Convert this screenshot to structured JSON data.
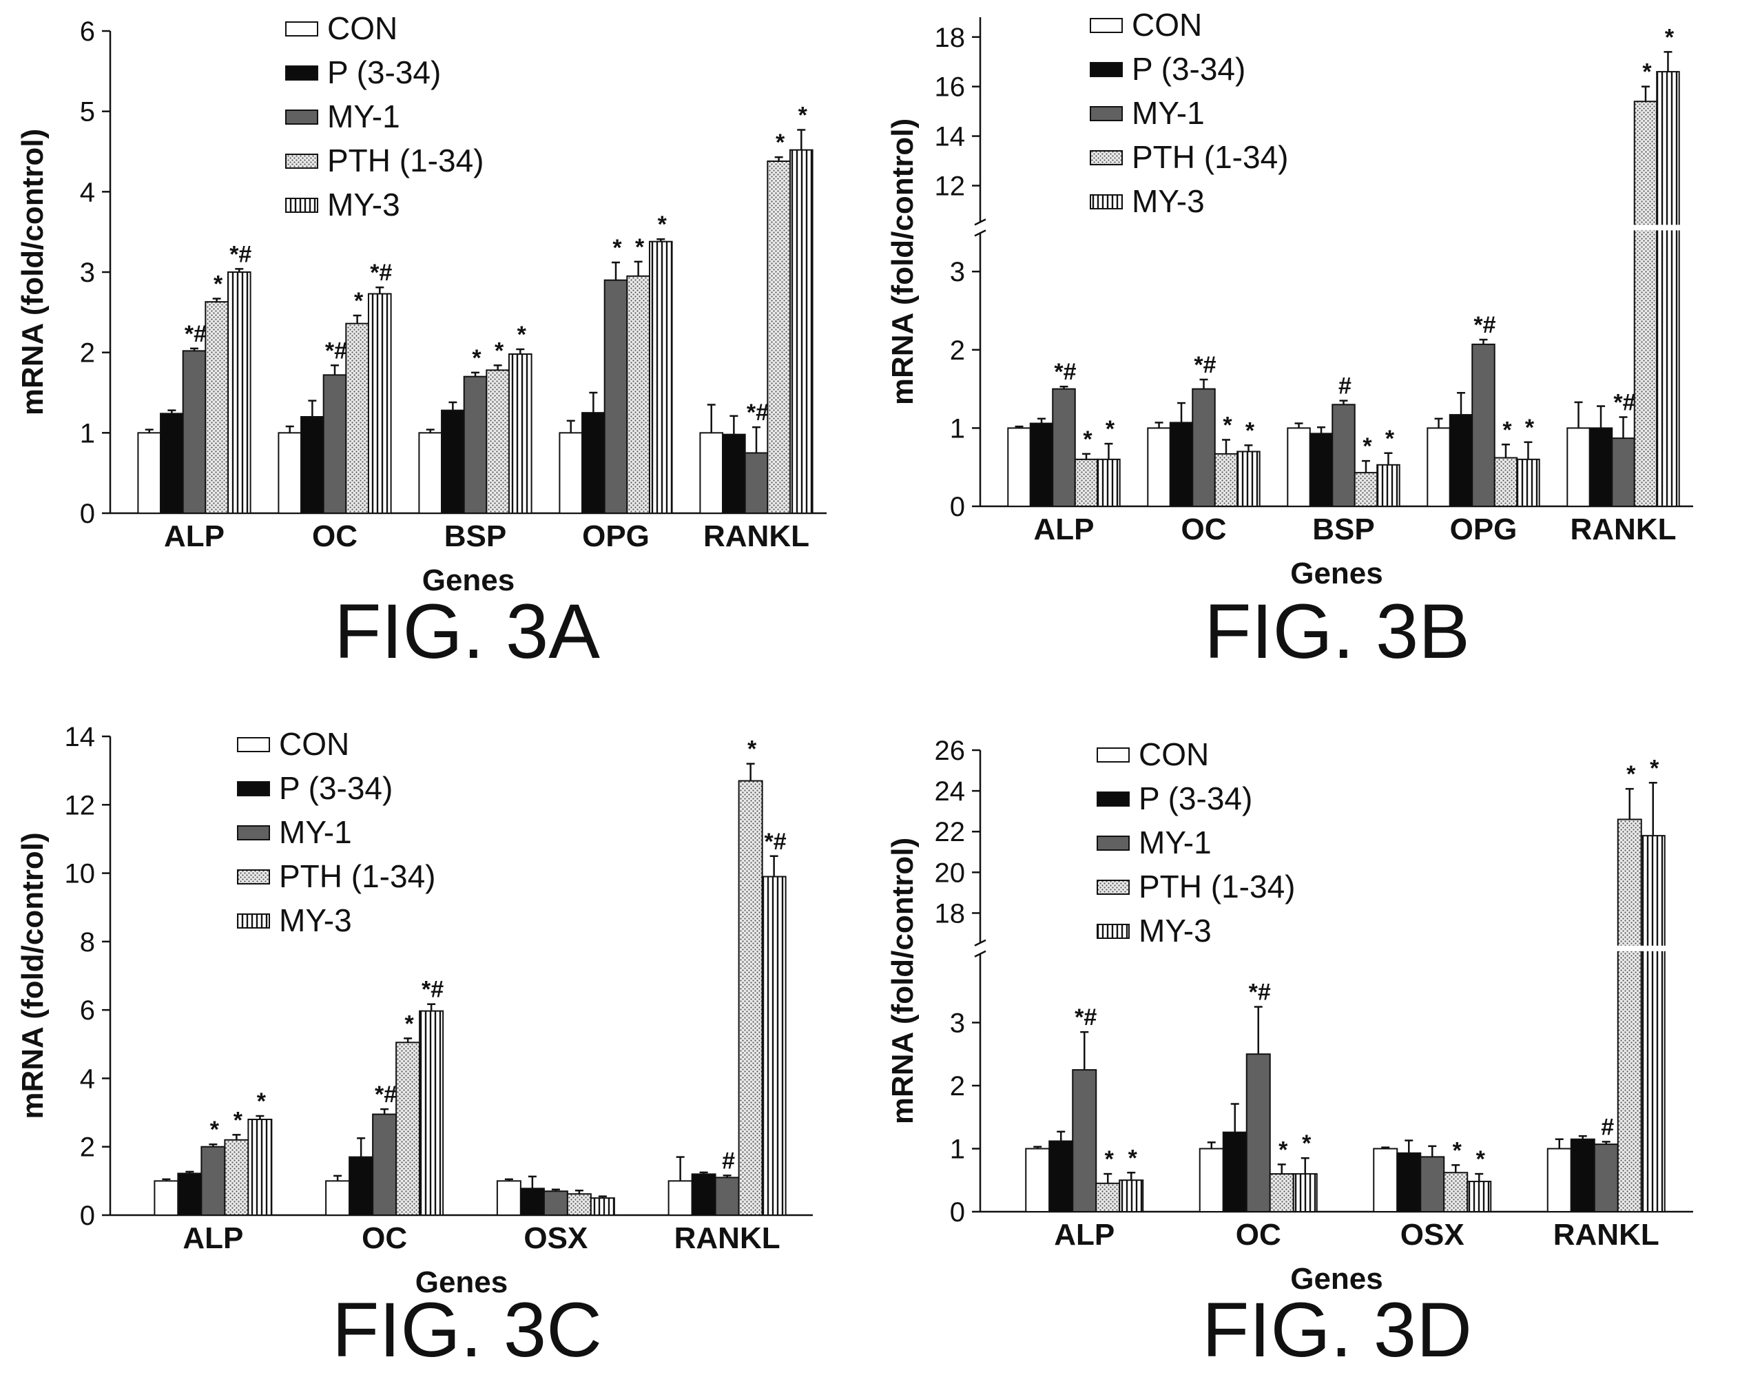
{
  "chart_data": [
    {
      "type": "bar",
      "figure_label": "FIG. 3A",
      "xlabel": "Genes",
      "ylabel": "mRNA (fold/control)",
      "categories": [
        "ALP",
        "OC",
        "BSP",
        "OPG",
        "RANKL"
      ],
      "ylim": [
        0,
        6
      ],
      "yticks": [
        "0",
        "1",
        "2",
        "3",
        "4",
        "5",
        "6"
      ],
      "series": [
        {
          "name": "CON",
          "values": [
            1.0,
            1.0,
            1.0,
            1.0,
            1.0
          ],
          "errors": [
            0.04,
            0.08,
            0.04,
            0.15,
            0.35
          ],
          "annotations": [
            "",
            "",
            "",
            "",
            ""
          ]
        },
        {
          "name": "P (3-34)",
          "values": [
            1.24,
            1.2,
            1.28,
            1.25,
            0.98
          ],
          "errors": [
            0.04,
            0.2,
            0.1,
            0.25,
            0.23
          ],
          "annotations": [
            "",
            "",
            "",
            "",
            ""
          ]
        },
        {
          "name": "MY-1",
          "values": [
            2.02,
            1.72,
            1.7,
            2.9,
            0.75
          ],
          "errors": [
            0.03,
            0.12,
            0.05,
            0.22,
            0.32
          ],
          "annotations": [
            "*#",
            "*#",
            "*",
            "*",
            "*#"
          ]
        },
        {
          "name": "PTH (1-34)",
          "values": [
            2.63,
            2.36,
            1.78,
            2.95,
            4.38
          ],
          "errors": [
            0.04,
            0.1,
            0.06,
            0.18,
            0.05
          ],
          "annotations": [
            "*",
            "*",
            "*",
            "*",
            "*"
          ]
        },
        {
          "name": "MY-3",
          "values": [
            3.0,
            2.73,
            1.98,
            3.38,
            4.52
          ],
          "errors": [
            0.04,
            0.08,
            0.06,
            0.03,
            0.25
          ],
          "annotations": [
            "*#",
            "*#",
            "*",
            "*",
            "*"
          ]
        }
      ]
    },
    {
      "type": "bar",
      "figure_label": "FIG. 3B",
      "xlabel": "Genes",
      "ylabel": "mRNA (fold/control)",
      "categories": [
        "ALP",
        "OC",
        "BSP",
        "OPG",
        "RANKL"
      ],
      "broken_axis": {
        "lower": [
          0,
          3.5
        ],
        "upper": [
          10.5,
          18.8
        ]
      },
      "yticks_lower": [
        "0",
        "1",
        "2",
        "3"
      ],
      "yticks_upper": [
        "12",
        "14",
        "16",
        "18"
      ],
      "series": [
        {
          "name": "CON",
          "values": [
            1.0,
            1.0,
            1.0,
            1.0,
            1.0
          ],
          "errors": [
            0.02,
            0.07,
            0.06,
            0.12,
            0.33
          ],
          "annotations": [
            "",
            "",
            "",
            "",
            ""
          ]
        },
        {
          "name": "P (3-34)",
          "values": [
            1.06,
            1.07,
            0.93,
            1.17,
            1.0
          ],
          "errors": [
            0.06,
            0.25,
            0.08,
            0.28,
            0.28
          ],
          "annotations": [
            "",
            "",
            "",
            "",
            ""
          ]
        },
        {
          "name": "MY-1",
          "values": [
            1.5,
            1.5,
            1.3,
            2.07,
            0.87
          ],
          "errors": [
            0.03,
            0.12,
            0.05,
            0.06,
            0.27
          ],
          "annotations": [
            "*#",
            "*#",
            "#",
            "*#",
            "*#"
          ]
        },
        {
          "name": "PTH (1-34)",
          "values": [
            0.6,
            0.67,
            0.43,
            0.62,
            15.4
          ],
          "errors": [
            0.07,
            0.18,
            0.15,
            0.17,
            0.6
          ],
          "annotations": [
            "*",
            "*",
            "*",
            "*",
            "*"
          ]
        },
        {
          "name": "MY-3",
          "values": [
            0.6,
            0.7,
            0.53,
            0.6,
            16.6
          ],
          "errors": [
            0.2,
            0.08,
            0.15,
            0.22,
            0.8
          ],
          "annotations": [
            "*",
            "*",
            "*",
            "*",
            "*"
          ]
        }
      ]
    },
    {
      "type": "bar",
      "figure_label": "FIG. 3C",
      "xlabel": "Genes",
      "ylabel": "mRNA (fold/control)",
      "categories": [
        "ALP",
        "OC",
        "OSX",
        "RANKL"
      ],
      "ylim": [
        0,
        14
      ],
      "yticks": [
        "0",
        "2",
        "4",
        "6",
        "8",
        "10",
        "12",
        "14"
      ],
      "series": [
        {
          "name": "CON",
          "values": [
            1.0,
            1.0,
            1.0,
            1.0
          ],
          "errors": [
            0.05,
            0.15,
            0.05,
            0.7
          ],
          "annotations": [
            "",
            "",
            "",
            ""
          ]
        },
        {
          "name": "P (3-34)",
          "values": [
            1.22,
            1.7,
            0.78,
            1.2
          ],
          "errors": [
            0.05,
            0.55,
            0.35,
            0.05
          ],
          "annotations": [
            "",
            "",
            "",
            ""
          ]
        },
        {
          "name": "MY-1",
          "values": [
            2.0,
            2.95,
            0.7,
            1.1
          ],
          "errors": [
            0.07,
            0.15,
            0.05,
            0.06
          ],
          "annotations": [
            "*",
            "*#",
            "",
            "#"
          ]
        },
        {
          "name": "PTH (1-34)",
          "values": [
            2.2,
            5.05,
            0.62,
            12.7
          ],
          "errors": [
            0.15,
            0.12,
            0.1,
            0.5
          ],
          "annotations": [
            "*",
            "*",
            "",
            "*"
          ]
        },
        {
          "name": "MY-3",
          "values": [
            2.8,
            5.97,
            0.5,
            9.9
          ],
          "errors": [
            0.1,
            0.2,
            0.05,
            0.6
          ],
          "annotations": [
            "*",
            "*#",
            "",
            "*#"
          ]
        }
      ]
    },
    {
      "type": "bar",
      "figure_label": "FIG. 3D",
      "xlabel": "Genes",
      "ylabel": "mRNA (fold/control)",
      "categories": [
        "ALP",
        "OC",
        "OSX",
        "RANKL"
      ],
      "broken_axis": {
        "lower": [
          0,
          4.1
        ],
        "upper": [
          16.5,
          26
        ]
      },
      "yticks_lower": [
        "0",
        "1",
        "2",
        "3"
      ],
      "yticks_upper": [
        "18",
        "20",
        "22",
        "24",
        "26"
      ],
      "series": [
        {
          "name": "CON",
          "values": [
            1.0,
            1.0,
            1.0,
            1.0
          ],
          "errors": [
            0.03,
            0.1,
            0.02,
            0.15
          ],
          "annotations": [
            "",
            "",
            "",
            ""
          ]
        },
        {
          "name": "P (3-34)",
          "values": [
            1.12,
            1.26,
            0.93,
            1.15
          ],
          "errors": [
            0.15,
            0.45,
            0.2,
            0.05
          ],
          "annotations": [
            "",
            "",
            "",
            ""
          ]
        },
        {
          "name": "MY-1",
          "values": [
            2.25,
            2.5,
            0.87,
            1.07
          ],
          "errors": [
            0.6,
            0.75,
            0.17,
            0.04
          ],
          "annotations": [
            "*#",
            "*#",
            "",
            "#"
          ]
        },
        {
          "name": "PTH (1-34)",
          "values": [
            0.45,
            0.6,
            0.62,
            22.6
          ],
          "errors": [
            0.15,
            0.15,
            0.12,
            1.5
          ],
          "annotations": [
            "*",
            "*",
            "*",
            "*"
          ]
        },
        {
          "name": "MY-3",
          "values": [
            0.5,
            0.6,
            0.48,
            21.8
          ],
          "errors": [
            0.12,
            0.25,
            0.12,
            2.6
          ],
          "annotations": [
            "*",
            "*",
            "*",
            "*"
          ]
        }
      ]
    }
  ]
}
